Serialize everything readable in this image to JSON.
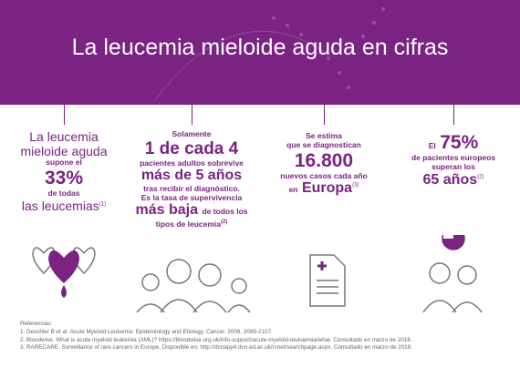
{
  "header": {
    "title": "La leucemia mieloide aguda en cifras"
  },
  "columns": [
    {
      "lines": [
        [
          "La leucemia"
        ],
        [
          "mieloide aguda"
        ],
        [
          "supone el"
        ],
        [
          "33%"
        ],
        [
          "de todas"
        ],
        [
          "las leucemias",
          "(1)"
        ]
      ]
    },
    {
      "lines": [
        [
          "Solamente"
        ],
        [
          "1 de cada 4"
        ],
        [
          "pacientes adultos sobrevive"
        ],
        [
          "más de 5 años"
        ],
        [
          "tras recibir el diagnóstico."
        ],
        [
          "Es la tasa de supervivencia"
        ],
        [
          "más baja",
          "de todos los"
        ],
        [
          "tipos de leucemia",
          "(2)"
        ]
      ]
    },
    {
      "lines": [
        [
          "Se estima"
        ],
        [
          "que se diagnostican"
        ],
        [
          "16.800"
        ],
        [
          "nuevos casos cada año"
        ],
        [
          "en",
          "Europa",
          "(3)"
        ]
      ]
    },
    {
      "lines": [
        [
          "El",
          "75%"
        ],
        [
          "de pacientes europeos"
        ],
        [
          "superan los"
        ],
        [
          "65 años",
          "(2)"
        ]
      ]
    }
  ],
  "references": {
    "heading": "Referencias:",
    "items": [
      "1. Deschler B et al. Acute Myeloid Leukemia: Epidemiology and Etiology. Cancer. 2006. 2099-2107.",
      "2. Bloodwise. What is acute myeloid leukemia (AML)? https://bloodwise.org.uk/info-support/acute-myeloid-leukaemia/what. Consultado en marzo de 2018.",
      "3. RARECARE. Surveillance of rare cancers in Europe. Disponible en: http://dcnapp4.dcn.ed.ac.uk/rcnet/searchpage.aspx. Consultado en marzo de 2018."
    ]
  }
}
